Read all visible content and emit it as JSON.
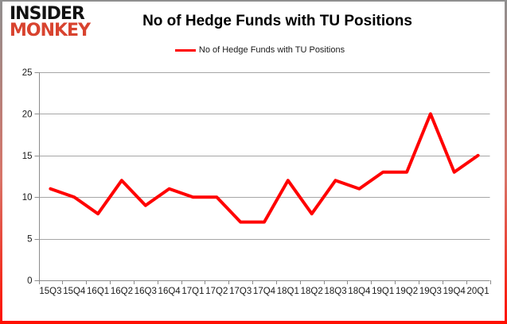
{
  "logo": {
    "line1": "INSIDER",
    "line2": "MONKEY"
  },
  "header": {
    "title": "No of Hedge Funds with TU Positions"
  },
  "legend": {
    "label": "No of Hedge Funds with TU Positions"
  },
  "chart_data": {
    "type": "line",
    "title": "No of Hedge Funds with TU Positions",
    "categories": [
      "15Q3",
      "15Q4",
      "16Q1",
      "16Q2",
      "16Q3",
      "16Q4",
      "17Q1",
      "17Q2",
      "17Q3",
      "17Q4",
      "18Q1",
      "18Q2",
      "18Q3",
      "18Q4",
      "19Q1",
      "19Q2",
      "19Q3",
      "19Q4",
      "20Q1"
    ],
    "series": [
      {
        "name": "No of Hedge Funds with TU Positions",
        "color": "#ff0000",
        "values": [
          11,
          10,
          8,
          12,
          9,
          11,
          10,
          10,
          7,
          7,
          12,
          8,
          12,
          11,
          13,
          13,
          20,
          13,
          15
        ]
      }
    ],
    "xlabel": "",
    "ylabel": "",
    "ylim": [
      0,
      25
    ],
    "yticks": [
      0,
      5,
      10,
      15,
      20,
      25
    ],
    "grid": true,
    "legend_position": "top-center"
  },
  "colors": {
    "line": "#ff0000",
    "logo_insider": "#121212",
    "logo_monkey": "#d8432f",
    "grid": "#a6a6a6",
    "axis": "#8c8c8c",
    "text": "#1a1a1a",
    "border_top": "#8f8f8f",
    "border_bottom": "#ff0f00",
    "background": "#ffffff"
  }
}
